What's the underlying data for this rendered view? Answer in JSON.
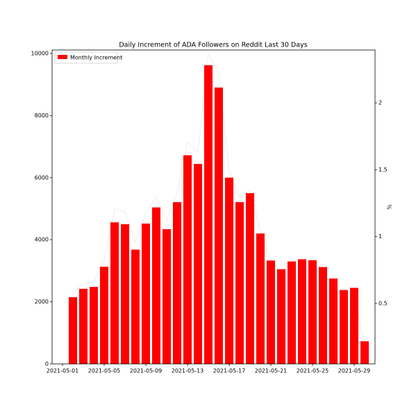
{
  "chart_data": {
    "type": "bar",
    "title": "Daily Increment of ADA Followers on Reddit Last 30 Days",
    "x": [
      "2021-05-02",
      "2021-05-03",
      "2021-05-04",
      "2021-05-05",
      "2021-05-06",
      "2021-05-07",
      "2021-05-08",
      "2021-05-09",
      "2021-05-10",
      "2021-05-11",
      "2021-05-12",
      "2021-05-13",
      "2021-05-14",
      "2021-05-15",
      "2021-05-16",
      "2021-05-17",
      "2021-05-18",
      "2021-05-19",
      "2021-05-20",
      "2021-05-21",
      "2021-05-22",
      "2021-05-23",
      "2021-05-24",
      "2021-05-25",
      "2021-05-26",
      "2021-05-27",
      "2021-05-28",
      "2021-05-29",
      "2021-05-30"
    ],
    "series": [
      {
        "name": "Monthly Increment",
        "color": "#ff0000",
        "values": [
          2150,
          2420,
          2480,
          3130,
          4560,
          4500,
          3680,
          4520,
          5040,
          4340,
          5210,
          6720,
          6440,
          9620,
          8900,
          6000,
          5210,
          5500,
          4200,
          3330,
          3050,
          3300,
          3370,
          3340,
          3120,
          2750,
          2380,
          2450,
          730
        ]
      },
      {
        "type": "line",
        "axis": "y2",
        "color": "#f0f0f0",
        "values": [
          0.58,
          0.65,
          0.66,
          0.83,
          1.21,
          1.18,
          0.96,
          1.18,
          1.3,
          1.12,
          1.33,
          1.71,
          1.63,
          2.36,
          2.23,
          1.49,
          1.29,
          1.35,
          1.03,
          0.81,
          0.74,
          0.79,
          0.8,
          0.79,
          0.74,
          0.64,
          0.55,
          0.57,
          0.17
        ]
      }
    ],
    "xlim": [
      "2021-04-30",
      "2021-05-31"
    ],
    "xticks": [
      "2021-05-01",
      "2021-05-05",
      "2021-05-09",
      "2021-05-13",
      "2021-05-17",
      "2021-05-21",
      "2021-05-25",
      "2021-05-29"
    ],
    "ylim": [
      0,
      10110
    ],
    "yticks": [
      0,
      2000,
      4000,
      6000,
      8000,
      10000
    ],
    "y2label": "%",
    "y2lim": [
      0.048,
      2.395
    ],
    "y2ticks": [
      0.5,
      1.0,
      1.5,
      2.0
    ],
    "legend": "upper left"
  }
}
